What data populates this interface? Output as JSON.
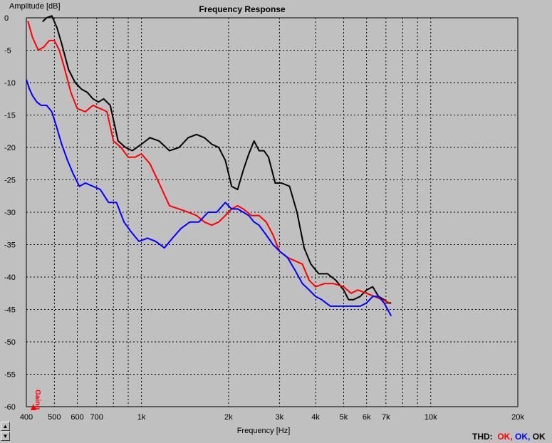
{
  "chart_data": {
    "type": "line",
    "title": "Frequency Response",
    "xlabel": "Frequency [Hz]",
    "ylabel": "Amplitude [dB]",
    "xscale": "log",
    "xlim": [
      400,
      20000
    ],
    "ylim": [
      -60,
      0
    ],
    "grid": true,
    "x_ticks": [
      {
        "value": 400,
        "label": "400"
      },
      {
        "value": 500,
        "label": "500"
      },
      {
        "value": 600,
        "label": "600"
      },
      {
        "value": 700,
        "label": "700"
      },
      {
        "value": 1000,
        "label": "1k"
      },
      {
        "value": 2000,
        "label": "2k"
      },
      {
        "value": 3000,
        "label": "3k"
      },
      {
        "value": 4000,
        "label": "4k"
      },
      {
        "value": 5000,
        "label": "5k"
      },
      {
        "value": 6000,
        "label": "6k"
      },
      {
        "value": 7000,
        "label": "7k"
      },
      {
        "value": 10000,
        "label": "10k"
      },
      {
        "value": 20000,
        "label": "20k"
      }
    ],
    "y_ticks": [
      0,
      -5,
      -10,
      -15,
      -20,
      -25,
      -30,
      -35,
      -40,
      -45,
      -50,
      -55,
      -60
    ],
    "series": [
      {
        "color": "#000000",
        "x": [
          455,
          470,
          490,
          510,
          530,
          560,
          590,
          620,
          650,
          680,
          710,
          740,
          780,
          830,
          880,
          930,
          1000,
          1070,
          1150,
          1250,
          1350,
          1450,
          1550,
          1650,
          1750,
          1850,
          1950,
          2050,
          2150,
          2250,
          2350,
          2450,
          2550,
          2650,
          2750,
          2900,
          3050,
          3250,
          3450,
          3650,
          3850,
          4100,
          4400,
          4700,
          5000,
          5200,
          5400,
          5700,
          6000,
          6300,
          6600,
          6900,
          7100,
          7300
        ],
        "y": [
          -0.6,
          0.0,
          0.3,
          -1.5,
          -4.0,
          -8.0,
          -10.0,
          -11.0,
          -11.5,
          -12.5,
          -13.0,
          -12.5,
          -13.5,
          -19.0,
          -20.0,
          -20.5,
          -19.5,
          -18.5,
          -19.0,
          -20.5,
          -20.0,
          -18.5,
          -18.0,
          -18.5,
          -19.5,
          -20.0,
          -22.0,
          -26.0,
          -26.5,
          -23.5,
          -21.0,
          -19.0,
          -20.5,
          -20.5,
          -21.5,
          -25.5,
          -25.5,
          -26.0,
          -30.0,
          -35.5,
          -38.0,
          -39.5,
          -39.5,
          -40.5,
          -42.0,
          -43.5,
          -43.5,
          -43.0,
          -42.0,
          -41.5,
          -43.0,
          -43.5,
          -44.0,
          -44.0
        ]
      },
      {
        "color": "#ff0000",
        "x": [
          405,
          420,
          440,
          460,
          480,
          500,
          520,
          540,
          570,
          600,
          640,
          680,
          720,
          760,
          800,
          850,
          900,
          950,
          1000,
          1070,
          1150,
          1250,
          1350,
          1450,
          1550,
          1650,
          1750,
          1850,
          1950,
          2050,
          2150,
          2250,
          2400,
          2550,
          2700,
          2850,
          3000,
          3200,
          3400,
          3600,
          3800,
          4000,
          4300,
          4600,
          5000,
          5300,
          5600,
          6000,
          6400,
          6800,
          7200
        ],
        "y": [
          -0.5,
          -3.0,
          -5.0,
          -4.5,
          -3.5,
          -3.5,
          -5.0,
          -7.5,
          -11.5,
          -14.0,
          -14.5,
          -13.5,
          -14.0,
          -14.5,
          -19.0,
          -20.0,
          -21.5,
          -21.5,
          -21.0,
          -22.5,
          -25.5,
          -29.0,
          -29.5,
          -30.0,
          -30.5,
          -31.5,
          -32.0,
          -31.5,
          -30.5,
          -29.5,
          -29.0,
          -29.5,
          -30.5,
          -30.5,
          -31.5,
          -33.5,
          -36.0,
          -37.0,
          -37.5,
          -38.0,
          -40.5,
          -41.5,
          -41.0,
          -41.0,
          -41.5,
          -42.5,
          -42.0,
          -42.5,
          -43.0,
          -43.5,
          -44.0
        ]
      },
      {
        "color": "#0000ff",
        "x": [
          400,
          410,
          420,
          435,
          450,
          470,
          490,
          510,
          530,
          555,
          580,
          610,
          640,
          680,
          720,
          770,
          820,
          870,
          920,
          980,
          1050,
          1120,
          1200,
          1280,
          1370,
          1470,
          1580,
          1700,
          1820,
          1950,
          2050,
          2150,
          2250,
          2350,
          2450,
          2550,
          2700,
          2850,
          3000,
          3200,
          3400,
          3600,
          3800,
          4000,
          4200,
          4500,
          4800,
          5100,
          5400,
          5700,
          6000,
          6300,
          6600,
          6900,
          7200,
          7300
        ],
        "y": [
          -9.5,
          -11.0,
          -12.0,
          -13.0,
          -13.5,
          -13.5,
          -14.5,
          -17.0,
          -19.5,
          -22.0,
          -24.0,
          -26.0,
          -25.5,
          -26.0,
          -26.5,
          -28.5,
          -28.5,
          -31.5,
          -33.0,
          -34.5,
          -34.0,
          -34.5,
          -35.5,
          -34.0,
          -32.5,
          -31.5,
          -31.5,
          -30.0,
          -30.0,
          -28.5,
          -29.5,
          -29.5,
          -30.0,
          -30.5,
          -31.5,
          -32.0,
          -33.5,
          -35.0,
          -36.0,
          -37.0,
          -39.0,
          -41.0,
          -42.0,
          -43.0,
          -43.5,
          -44.5,
          -44.5,
          -44.5,
          -44.5,
          -44.5,
          -44.0,
          -43.0,
          -43.0,
          -44.0,
          -45.5,
          -46.0
        ]
      }
    ],
    "annotations": [
      {
        "text": "Gaing",
        "color": "#ff0000"
      }
    ]
  },
  "status": {
    "label": "THD:",
    "values": [
      {
        "text": "OK,",
        "color": "#ff0000"
      },
      {
        "text": "OK,",
        "color": "#0000ff"
      },
      {
        "text": "OK",
        "color": "#000000"
      }
    ]
  },
  "scrollbar": {
    "up_icon": "arrow-up-icon",
    "down_icon": "arrow-down-icon"
  }
}
